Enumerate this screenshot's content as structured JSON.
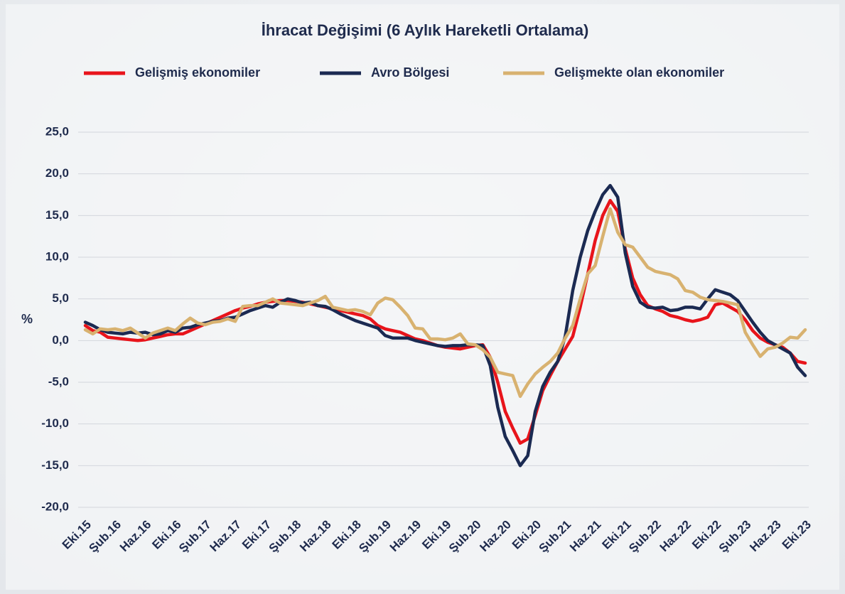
{
  "chart_data": {
    "type": "line",
    "title": "İhracat Değişimi (6 Aylık Hareketli Ortalama)",
    "y_label": "%",
    "categories": [
      "Eki.15",
      null,
      null,
      null,
      "Şub.16",
      null,
      null,
      null,
      "Haz.16",
      null,
      null,
      null,
      "Eki.16",
      null,
      null,
      null,
      "Şub.17",
      null,
      null,
      null,
      "Haz.17",
      null,
      null,
      null,
      "Eki.17",
      null,
      null,
      null,
      "Şub.18",
      null,
      null,
      null,
      "Haz.18",
      null,
      null,
      null,
      "Eki.18",
      null,
      null,
      null,
      "Şub.19",
      null,
      null,
      null,
      "Haz.19",
      null,
      null,
      null,
      "Eki.19",
      null,
      null,
      null,
      "Şub.20",
      null,
      null,
      null,
      "Haz.20",
      null,
      null,
      null,
      "Eki.20",
      null,
      null,
      null,
      "Şub.21",
      null,
      null,
      null,
      "Haz.21",
      null,
      null,
      null,
      "Eki.21",
      null,
      null,
      null,
      "Şub.22",
      null,
      null,
      null,
      "Haz.22",
      null,
      null,
      null,
      "Eki.22",
      null,
      null,
      null,
      "Şub.23",
      null,
      null,
      null,
      "Haz.23",
      null,
      null,
      null,
      "Eki.23"
    ],
    "series": [
      {
        "name": "Gelişmiş ekonomiler",
        "color": "#e8141b",
        "values": [
          1.8,
          1.2,
          1.0,
          0.4,
          0.3,
          0.2,
          0.1,
          0.0,
          0.1,
          0.3,
          0.5,
          0.7,
          0.8,
          0.8,
          1.2,
          1.6,
          2.0,
          2.4,
          2.8,
          3.2,
          3.6,
          3.9,
          4.1,
          4.4,
          4.6,
          4.7,
          4.8,
          4.8,
          4.7,
          4.6,
          4.4,
          4.2,
          4.0,
          3.8,
          3.6,
          3.4,
          3.2,
          3.0,
          2.6,
          1.8,
          1.4,
          1.2,
          1.0,
          0.6,
          0.2,
          0.0,
          -0.3,
          -0.6,
          -0.8,
          -0.9,
          -1.0,
          -0.8,
          -0.6,
          -0.5,
          -2.0,
          -5.0,
          -8.5,
          -10.5,
          -12.3,
          -11.8,
          -9.0,
          -6.0,
          -4.2,
          -2.5,
          -1.0,
          0.5,
          4.0,
          8.0,
          12.0,
          15.0,
          16.8,
          15.5,
          11.0,
          7.5,
          5.5,
          4.2,
          3.8,
          3.5,
          3.0,
          2.8,
          2.5,
          2.3,
          2.5,
          2.8,
          4.3,
          4.5,
          4.0,
          3.5,
          2.5,
          1.2,
          0.3,
          -0.2,
          -0.5,
          -0.8,
          -1.5,
          -2.5,
          -2.7
        ]
      },
      {
        "name": "Avro Bölgesi",
        "color": "#1b2a52",
        "values": [
          2.2,
          1.8,
          1.3,
          1.0,
          0.9,
          0.8,
          1.0,
          0.9,
          1.0,
          0.7,
          0.8,
          1.2,
          1.0,
          1.5,
          1.6,
          1.9,
          2.1,
          2.3,
          2.4,
          2.7,
          2.8,
          3.2,
          3.6,
          3.9,
          4.2,
          4.0,
          4.6,
          5.0,
          4.8,
          4.5,
          4.6,
          4.2,
          4.1,
          3.7,
          3.2,
          2.8,
          2.4,
          2.1,
          1.8,
          1.5,
          0.6,
          0.3,
          0.3,
          0.3,
          0.0,
          -0.2,
          -0.4,
          -0.6,
          -0.7,
          -0.6,
          -0.6,
          -0.5,
          -0.5,
          -0.6,
          -3.0,
          -8.0,
          -11.5,
          -13.2,
          -15.0,
          -13.8,
          -8.5,
          -5.5,
          -3.8,
          -2.5,
          0.5,
          6.0,
          10.0,
          13.2,
          15.5,
          17.5,
          18.6,
          17.2,
          10.5,
          6.5,
          4.6,
          4.0,
          3.9,
          4.0,
          3.6,
          3.7,
          4.0,
          4.0,
          3.8,
          5.0,
          6.1,
          5.8,
          5.5,
          4.8,
          3.5,
          2.2,
          1.0,
          0.0,
          -0.5,
          -1.0,
          -1.5,
          -3.2,
          -4.2
        ]
      },
      {
        "name": "Gelişmekte olan ekonomiler",
        "color": "#d8b270",
        "values": [
          1.3,
          0.8,
          1.4,
          1.3,
          1.4,
          1.2,
          1.5,
          0.9,
          0.3,
          0.9,
          1.2,
          1.5,
          1.2,
          2.0,
          2.7,
          2.1,
          1.9,
          2.2,
          2.3,
          2.6,
          2.3,
          4.1,
          4.2,
          4.2,
          4.6,
          5.0,
          4.5,
          4.4,
          4.3,
          4.2,
          4.5,
          4.8,
          5.3,
          4.0,
          3.8,
          3.6,
          3.7,
          3.5,
          3.1,
          4.5,
          5.1,
          4.9,
          4.0,
          3.0,
          1.5,
          1.4,
          0.2,
          0.2,
          0.1,
          0.3,
          0.8,
          -0.4,
          -0.5,
          -1.1,
          -2.0,
          -3.8,
          -4.0,
          -4.2,
          -6.7,
          -5.2,
          -4.0,
          -3.2,
          -2.5,
          -1.5,
          0.3,
          1.8,
          5.0,
          8.0,
          9.0,
          12.5,
          15.8,
          13.0,
          11.5,
          11.2,
          10.0,
          8.8,
          8.3,
          8.1,
          7.9,
          7.4,
          6.0,
          5.8,
          5.2,
          4.9,
          4.8,
          4.7,
          4.5,
          4.3,
          1.0,
          -0.5,
          -1.9,
          -1.0,
          -0.8,
          -0.3,
          0.4,
          0.3,
          1.3
        ]
      }
    ],
    "ylim": [
      -20,
      25
    ],
    "yticks": [
      {
        "value": -20,
        "label": "-20,0"
      },
      {
        "value": -15,
        "label": "-15,0"
      },
      {
        "value": -10,
        "label": "-10,0"
      },
      {
        "value": -5,
        "label": "-5,0"
      },
      {
        "value": 0,
        "label": "0,0"
      },
      {
        "value": 5,
        "label": "5,0"
      },
      {
        "value": 10,
        "label": "10,0"
      },
      {
        "value": 15,
        "label": "15,0"
      },
      {
        "value": 20,
        "label": "20,0"
      },
      {
        "value": 25,
        "label": "25,0"
      }
    ],
    "grid": true,
    "legend": "top"
  }
}
